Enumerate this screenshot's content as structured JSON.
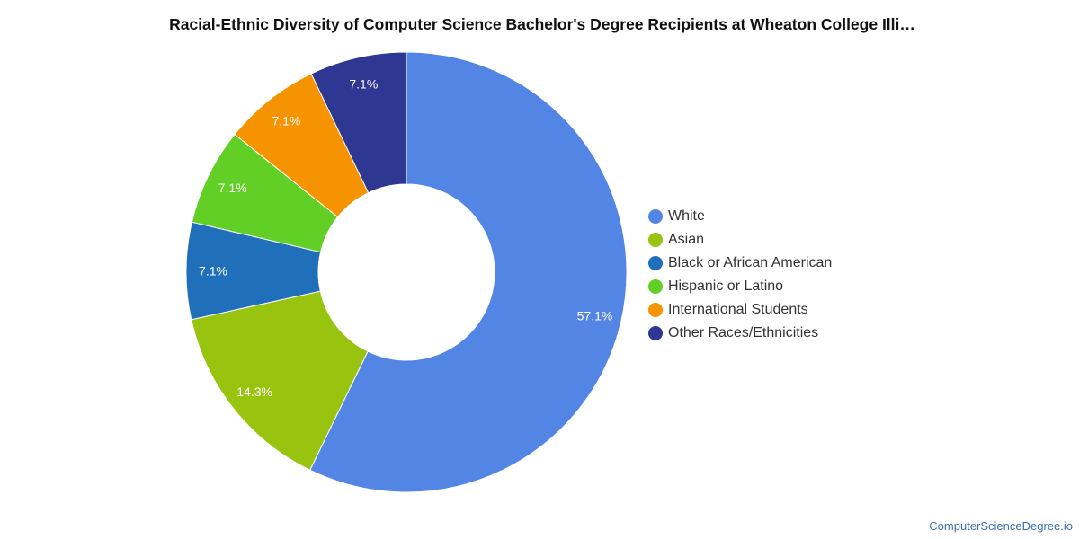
{
  "chart_data": {
    "type": "pie",
    "title": "Racial-Ethnic Diversity of Computer Science Bachelor's Degree Recipients at Wheaton College Illi…",
    "series": [
      {
        "name": "White",
        "value": 57.1,
        "label": "57.1%",
        "color": "#5386e4"
      },
      {
        "name": "Asian",
        "value": 14.3,
        "label": "14.3%",
        "color": "#98c30f"
      },
      {
        "name": "Black or African American",
        "value": 7.1,
        "label": "7.1%",
        "color": "#1f6fba"
      },
      {
        "name": "Hispanic or Latino",
        "value": 7.1,
        "label": "7.1%",
        "color": "#62cf26"
      },
      {
        "name": "International Students",
        "value": 7.1,
        "label": "7.1%",
        "color": "#f59300"
      },
      {
        "name": "Other Races/Ethnicities",
        "value": 7.1,
        "label": "7.1%",
        "color": "#2e3892"
      }
    ],
    "legend_position": "right"
  },
  "credit": "ComputerScienceDegree.io"
}
